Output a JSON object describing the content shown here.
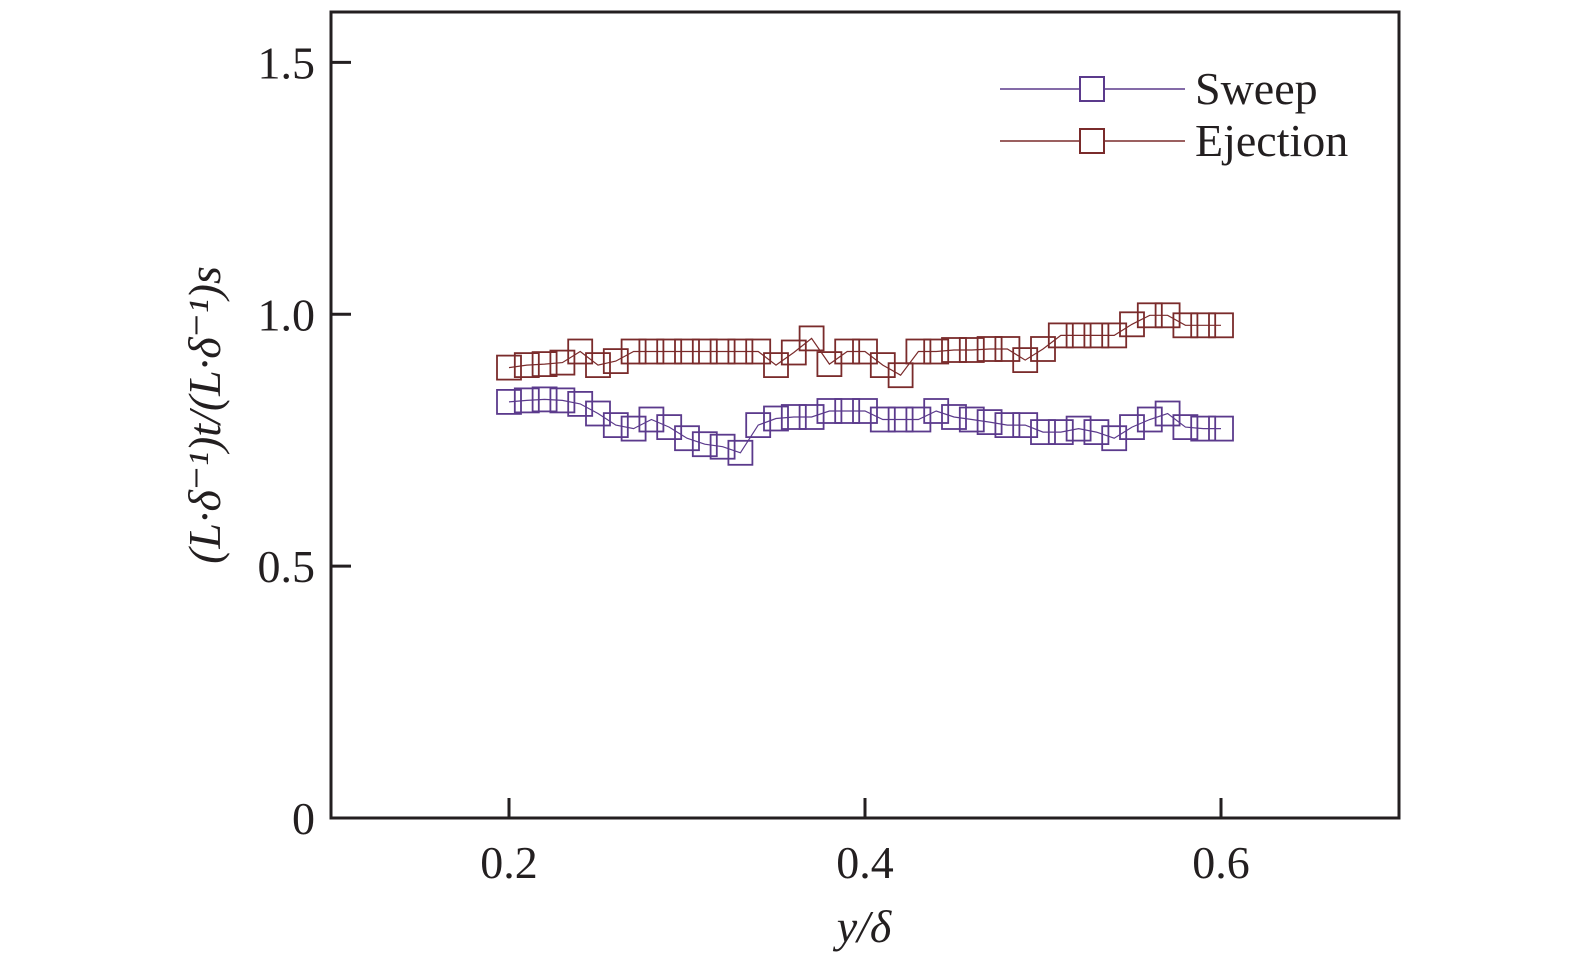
{
  "chart_data": {
    "type": "line",
    "xlabel": "y/δ",
    "ylabel": "(L·δ⁻¹)t/(L·δ⁻¹)s",
    "xlim": [
      0.1,
      0.7
    ],
    "ylim": [
      0,
      1.6
    ],
    "xticks": [
      0.2,
      0.4,
      0.6
    ],
    "xtick_labels": [
      "0.2",
      "0.4",
      "0.6"
    ],
    "yticks": [
      0,
      0.5,
      1.0,
      1.5
    ],
    "ytick_labels": [
      "0",
      "0.5",
      "1.0",
      "1.5"
    ],
    "grid": false,
    "legend_position": "top-right",
    "marker": "open-square",
    "series": [
      {
        "name": "Sweep",
        "color": "#5b3a8c",
        "x": [
          0.2,
          0.21,
          0.22,
          0.23,
          0.24,
          0.25,
          0.26,
          0.27,
          0.28,
          0.29,
          0.3,
          0.31,
          0.32,
          0.33,
          0.34,
          0.35,
          0.36,
          0.37,
          0.38,
          0.39,
          0.4,
          0.41,
          0.42,
          0.43,
          0.44,
          0.45,
          0.46,
          0.47,
          0.48,
          0.49,
          0.5,
          0.51,
          0.52,
          0.53,
          0.54,
          0.55,
          0.56,
          0.57,
          0.58,
          0.59,
          0.6
        ],
        "y": [
          0.826,
          0.829,
          0.831,
          0.829,
          0.822,
          0.803,
          0.78,
          0.773,
          0.791,
          0.776,
          0.754,
          0.742,
          0.737,
          0.725,
          0.78,
          0.793,
          0.796,
          0.796,
          0.808,
          0.808,
          0.808,
          0.791,
          0.791,
          0.791,
          0.808,
          0.796,
          0.791,
          0.786,
          0.78,
          0.78,
          0.766,
          0.766,
          0.773,
          0.766,
          0.754,
          0.776,
          0.791,
          0.803,
          0.776,
          0.773,
          0.773
        ]
      },
      {
        "name": "Ejection",
        "color": "#7a2b2b",
        "x": [
          0.2,
          0.21,
          0.22,
          0.23,
          0.24,
          0.25,
          0.26,
          0.27,
          0.28,
          0.29,
          0.3,
          0.31,
          0.32,
          0.33,
          0.34,
          0.35,
          0.36,
          0.37,
          0.38,
          0.39,
          0.4,
          0.41,
          0.42,
          0.43,
          0.44,
          0.45,
          0.46,
          0.47,
          0.48,
          0.49,
          0.5,
          0.51,
          0.52,
          0.53,
          0.54,
          0.55,
          0.56,
          0.57,
          0.58,
          0.59,
          0.6
        ],
        "y": [
          0.894,
          0.899,
          0.901,
          0.904,
          0.926,
          0.899,
          0.907,
          0.926,
          0.926,
          0.926,
          0.926,
          0.926,
          0.926,
          0.926,
          0.926,
          0.899,
          0.924,
          0.952,
          0.901,
          0.926,
          0.926,
          0.899,
          0.879,
          0.926,
          0.926,
          0.929,
          0.929,
          0.931,
          0.931,
          0.909,
          0.931,
          0.958,
          0.958,
          0.958,
          0.958,
          0.98,
          0.998,
          0.998,
          0.978,
          0.978,
          0.978
        ]
      }
    ]
  }
}
